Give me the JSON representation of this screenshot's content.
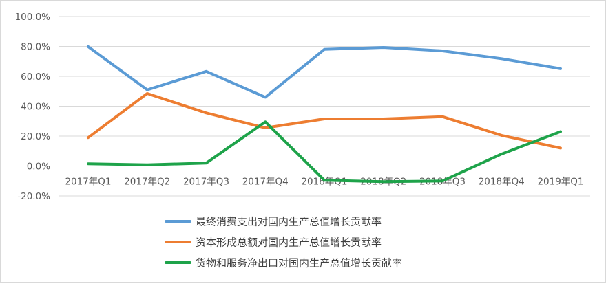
{
  "chart_data": {
    "type": "line",
    "categories": [
      "2017年Q1",
      "2017年Q2",
      "2017年Q3",
      "2017年Q4",
      "2018年Q1",
      "2018年Q2",
      "2018年Q3",
      "2018年Q4",
      "2019年Q1"
    ],
    "ylim": [
      -20,
      100
    ],
    "yticks": [
      -20,
      0,
      20,
      40,
      60,
      80,
      100
    ],
    "ytick_labels": [
      "-20.0%",
      "0.0%",
      "20.0%",
      "40.0%",
      "60.0%",
      "80.0%",
      "100.0%"
    ],
    "grid": true,
    "legend_position": "bottom",
    "series": [
      {
        "name": "最终消费支出对国内生产总值增长贡献率",
        "color": "#5b9bd5",
        "values": [
          79.8,
          51.0,
          63.3,
          46.0,
          78.0,
          79.3,
          77.0,
          71.8,
          65.1
        ]
      },
      {
        "name": "资本形成总额对国内生产总值增长贡献率",
        "color": "#ed7d31",
        "values": [
          19.0,
          48.5,
          35.5,
          25.5,
          31.5,
          31.5,
          33.0,
          20.5,
          12.0
        ]
      },
      {
        "name": "货物和服务净出口对国内生产总值增长贡献率",
        "color": "#1ea34a",
        "values": [
          1.5,
          0.8,
          2.0,
          29.5,
          -9.5,
          -10.5,
          -10.0,
          8.0,
          23.0
        ]
      }
    ]
  }
}
